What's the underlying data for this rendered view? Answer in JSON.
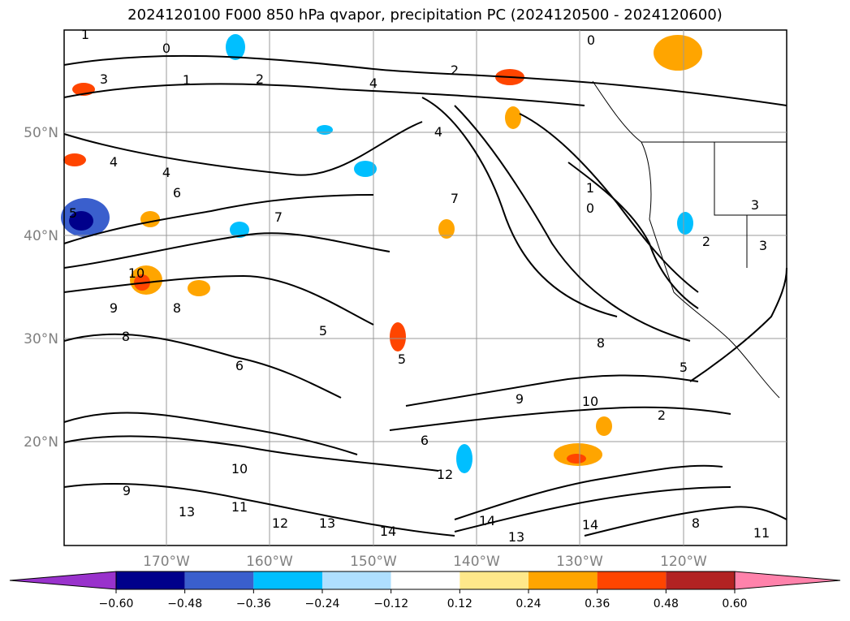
{
  "title": "2024120100 F000 850 hPa qvapor, precipitation PC (2024120500 - 2024120600)",
  "latitude_labels": [
    "50°N",
    "40°N",
    "30°N",
    "20°N"
  ],
  "longitude_labels": [
    "170°W",
    "160°W",
    "150°W",
    "140°W",
    "130°W",
    "120°W"
  ],
  "colorbar": {
    "colors": [
      "#9932cc",
      "#00008b",
      "#3a5fcd",
      "#00bfff",
      "#afdfff",
      "#ffffff",
      "#ffe88a",
      "#ffa500",
      "#ff4500",
      "#b22222",
      "#ff82ab"
    ],
    "tick_labels": [
      "−0.60",
      "−0.48",
      "−0.36",
      "−0.24",
      "−0.12",
      "0.12",
      "0.24",
      "0.36",
      "0.48",
      "0.60"
    ]
  },
  "contour_labels": [
    {
      "text": "1"
    },
    {
      "text": "0"
    },
    {
      "text": "3"
    },
    {
      "text": "2"
    },
    {
      "text": "4"
    },
    {
      "text": "2"
    },
    {
      "text": "0"
    },
    {
      "text": "1"
    },
    {
      "text": "4"
    },
    {
      "text": "4"
    },
    {
      "text": "4"
    },
    {
      "text": "5"
    },
    {
      "text": "6"
    },
    {
      "text": "7"
    },
    {
      "text": "5"
    },
    {
      "text": "7"
    },
    {
      "text": "10"
    },
    {
      "text": "8"
    },
    {
      "text": "9"
    },
    {
      "text": "8"
    },
    {
      "text": "6"
    },
    {
      "text": "5"
    },
    {
      "text": "9"
    },
    {
      "text": "10"
    },
    {
      "text": "6"
    },
    {
      "text": "8"
    },
    {
      "text": "14"
    },
    {
      "text": "13"
    },
    {
      "text": "14"
    },
    {
      "text": "12"
    },
    {
      "text": "13"
    },
    {
      "text": "11"
    },
    {
      "text": "9"
    },
    {
      "text": "12"
    },
    {
      "text": "10"
    },
    {
      "text": "2"
    },
    {
      "text": "3"
    },
    {
      "text": "1"
    },
    {
      "text": "0"
    },
    {
      "text": "3"
    },
    {
      "text": "2"
    },
    {
      "text": "5"
    },
    {
      "text": "8"
    },
    {
      "text": "14"
    },
    {
      "text": "13"
    },
    {
      "text": "11"
    }
  ]
}
